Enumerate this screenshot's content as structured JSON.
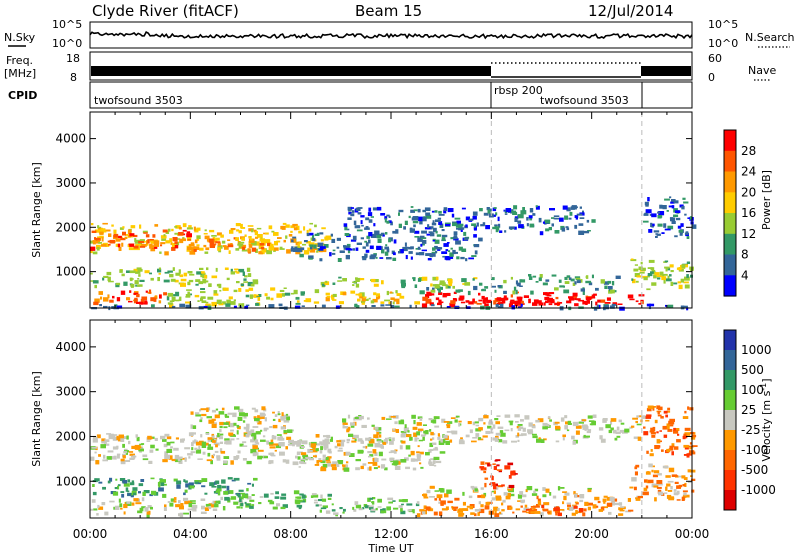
{
  "header": {
    "station": "Clyde River (fitACF)",
    "beam": "Beam 15",
    "date": "12/Jul/2014"
  },
  "noise_panel": {
    "left_label": "N.Sky",
    "left_ticks": [
      "10^5",
      "10^0"
    ],
    "right_label": "N.Search",
    "right_ticks": [
      "10^5",
      "10^0"
    ]
  },
  "freq_panel": {
    "left_label_1": "Freq.",
    "left_label_2": "[MHz]",
    "left_ticks": [
      "18",
      "8"
    ],
    "right_label": "Nave",
    "right_ticks": [
      "60",
      "0"
    ]
  },
  "cpid_panel": {
    "label": "CPID",
    "segments": [
      {
        "name": "twofsound 3503",
        "start_hour": 0,
        "end_hour": 16
      },
      {
        "name": "rbsp 200",
        "start_hour": 16,
        "end_hour": 22
      },
      {
        "name": "twofsound 3503",
        "start_hour": 16,
        "end_hour": 22
      }
    ]
  },
  "chart_data": [
    {
      "type": "heatmap",
      "name": "power",
      "ylabel": "Slant Range [km]",
      "x_range_hours": [
        0,
        24
      ],
      "ylim": [
        180,
        4600
      ],
      "y_ticks": [
        1000,
        2000,
        3000,
        4000
      ],
      "colorbar": {
        "label": "Power [dB]",
        "ticks": [
          "28",
          "24",
          "20",
          "16",
          "12",
          "8",
          "4"
        ],
        "colors": [
          "#ff0000",
          "#ff5500",
          "#ff9900",
          "#ffcc00",
          "#99cc33",
          "#339966",
          "#336699",
          "#0000ff"
        ]
      },
      "bands": [
        {
          "t0": 0.0,
          "t1": 9.5,
          "r0": 1450,
          "r1": 2100,
          "level": 4
        },
        {
          "t0": 0.0,
          "t1": 4.0,
          "r0": 1550,
          "r1": 1950,
          "level": 6
        },
        {
          "t0": 3.5,
          "t1": 7.5,
          "r0": 1500,
          "r1": 1800,
          "level": 5
        },
        {
          "t0": 8.0,
          "t1": 15.5,
          "r0": 1300,
          "r1": 1900,
          "level": 1
        },
        {
          "t0": 10.0,
          "t1": 20.0,
          "r0": 1900,
          "r1": 2500,
          "level": 1
        },
        {
          "t0": 0.0,
          "t1": 6.5,
          "r0": 700,
          "r1": 1100,
          "level": 3
        },
        {
          "t0": 0.0,
          "t1": 3.0,
          "r0": 280,
          "r1": 600,
          "level": 6
        },
        {
          "t0": 3.0,
          "t1": 9.0,
          "r0": 280,
          "r1": 650,
          "level": 3
        },
        {
          "t0": 9.0,
          "t1": 13.0,
          "r0": 300,
          "r1": 600,
          "level": 4
        },
        {
          "t0": 13.0,
          "t1": 21.0,
          "r0": 280,
          "r1": 560,
          "level": 7
        },
        {
          "t0": 15.0,
          "t1": 20.0,
          "r0": 280,
          "r1": 450,
          "level": 8
        },
        {
          "t0": 13.0,
          "t1": 21.0,
          "r0": 560,
          "r1": 700,
          "level": 2
        },
        {
          "t0": 9.0,
          "t1": 15.5,
          "r0": 700,
          "r1": 900,
          "level": 3
        },
        {
          "t0": 15.5,
          "t1": 21.0,
          "r0": 750,
          "r1": 950,
          "level": 2
        },
        {
          "t0": 21.0,
          "t1": 22.0,
          "r0": 280,
          "r1": 500,
          "level": 7
        },
        {
          "t0": 21.5,
          "t1": 24.0,
          "r0": 600,
          "r1": 1300,
          "level": 3
        },
        {
          "t0": 22.0,
          "t1": 24.0,
          "r0": 1800,
          "r1": 2700,
          "level": 1
        },
        {
          "t0": 0.0,
          "t1": 24.0,
          "r0": 200,
          "r1": 280,
          "level": 1
        }
      ]
    },
    {
      "type": "heatmap",
      "name": "velocity",
      "ylabel": "Slant Range [km]",
      "x_range_hours": [
        0,
        24
      ],
      "ylim": [
        180,
        4600
      ],
      "y_ticks": [
        1000,
        2000,
        3000,
        4000
      ],
      "xlabel": "Time UT",
      "x_ticks": [
        "00:00",
        "04:00",
        "08:00",
        "12:00",
        "16:00",
        "20:00",
        "00:00"
      ],
      "colorbar": {
        "label": "Velocity [m s^-1]",
        "ticks": [
          "1000",
          "500",
          "100",
          "25",
          "-25",
          "-100",
          "-500",
          "-1000"
        ],
        "colors": [
          "#2233aa",
          "#336699",
          "#339966",
          "#66cc33",
          "#c8c8c0",
          "#ff9900",
          "#ff6600",
          "#ff3300",
          "#dd0000"
        ]
      },
      "bands": [
        {
          "t0": 0.0,
          "t1": 9.5,
          "r0": 1450,
          "r1": 2100,
          "level": 4
        },
        {
          "t0": 4.0,
          "t1": 8.0,
          "r0": 1800,
          "r1": 2700,
          "level": 4
        },
        {
          "t0": 8.0,
          "t1": 14.0,
          "r0": 1300,
          "r1": 2000,
          "level": 4
        },
        {
          "t0": 10.0,
          "t1": 22.0,
          "r0": 1900,
          "r1": 2500,
          "level": 4
        },
        {
          "t0": 0.0,
          "t1": 6.5,
          "r0": 700,
          "r1": 1100,
          "level": 2
        },
        {
          "t0": 0.0,
          "t1": 5.0,
          "r0": 280,
          "r1": 650,
          "level": 4
        },
        {
          "t0": 5.0,
          "t1": 9.5,
          "r0": 400,
          "r1": 800,
          "level": 3
        },
        {
          "t0": 9.0,
          "t1": 13.0,
          "r0": 300,
          "r1": 650,
          "level": 3
        },
        {
          "t0": 13.0,
          "t1": 21.5,
          "r0": 280,
          "r1": 700,
          "level": 5
        },
        {
          "t0": 16.5,
          "t1": 20.5,
          "r0": 300,
          "r1": 480,
          "level": 6
        },
        {
          "t0": 13.0,
          "t1": 20.0,
          "r0": 700,
          "r1": 900,
          "level": 4
        },
        {
          "t0": 15.5,
          "t1": 17.0,
          "r0": 900,
          "r1": 1500,
          "level": 7
        },
        {
          "t0": 21.5,
          "t1": 24.0,
          "r0": 600,
          "r1": 1400,
          "level": 5
        },
        {
          "t0": 22.0,
          "t1": 24.0,
          "r0": 1600,
          "r1": 2700,
          "level": 6
        }
      ]
    }
  ]
}
